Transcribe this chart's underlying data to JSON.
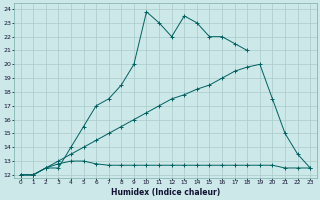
{
  "xlabel": "Humidex (Indice chaleur)",
  "bg_color": "#cce8e8",
  "grid_color": "#aacccc",
  "line_color": "#006060",
  "xlim": [
    -0.5,
    23.5
  ],
  "ylim": [
    11.8,
    24.4
  ],
  "xtick_labels": [
    "0",
    "1",
    "2",
    "3",
    "4",
    "5",
    "6",
    "7",
    "8",
    "9",
    "10",
    "11",
    "12",
    "13",
    "14",
    "15",
    "16",
    "17",
    "18",
    "19",
    "20",
    "21",
    "22",
    "23"
  ],
  "ytick_labels": [
    "12",
    "13",
    "14",
    "15",
    "16",
    "17",
    "18",
    "19",
    "20",
    "21",
    "22",
    "23",
    "24"
  ],
  "line1_x": [
    0,
    1,
    2,
    3,
    4,
    5,
    6,
    7,
    8,
    9,
    10,
    11,
    12,
    13,
    14,
    15,
    16,
    17,
    18
  ],
  "line1_y": [
    12,
    12,
    12.5,
    12.5,
    14,
    15.5,
    17,
    17.5,
    18.5,
    20,
    23.8,
    23.0,
    22.0,
    23.5,
    23.0,
    22.0,
    22.0,
    21.5,
    21.0
  ],
  "line2_x": [
    0,
    1,
    2,
    3,
    4,
    5,
    6,
    7,
    8,
    9,
    10,
    11,
    12,
    13,
    14,
    15,
    16,
    17,
    18,
    19,
    20,
    21,
    22,
    23
  ],
  "line2_y": [
    12,
    12,
    12.5,
    13.0,
    13.5,
    14.0,
    14.5,
    15.0,
    15.5,
    16.0,
    16.5,
    17.0,
    17.5,
    17.8,
    18.2,
    18.5,
    19.0,
    19.5,
    19.8,
    20.0,
    17.5,
    15.0,
    13.5,
    12.5
  ],
  "line3_x": [
    0,
    1,
    2,
    3,
    4,
    5,
    6,
    7,
    8,
    9,
    10,
    11,
    12,
    13,
    14,
    15,
    16,
    17,
    18,
    19,
    20,
    21,
    22,
    23
  ],
  "line3_y": [
    12,
    12,
    12.5,
    12.8,
    13.0,
    13.0,
    12.8,
    12.7,
    12.7,
    12.7,
    12.7,
    12.7,
    12.7,
    12.7,
    12.7,
    12.7,
    12.7,
    12.7,
    12.7,
    12.7,
    12.7,
    12.5,
    12.5,
    12.5
  ]
}
